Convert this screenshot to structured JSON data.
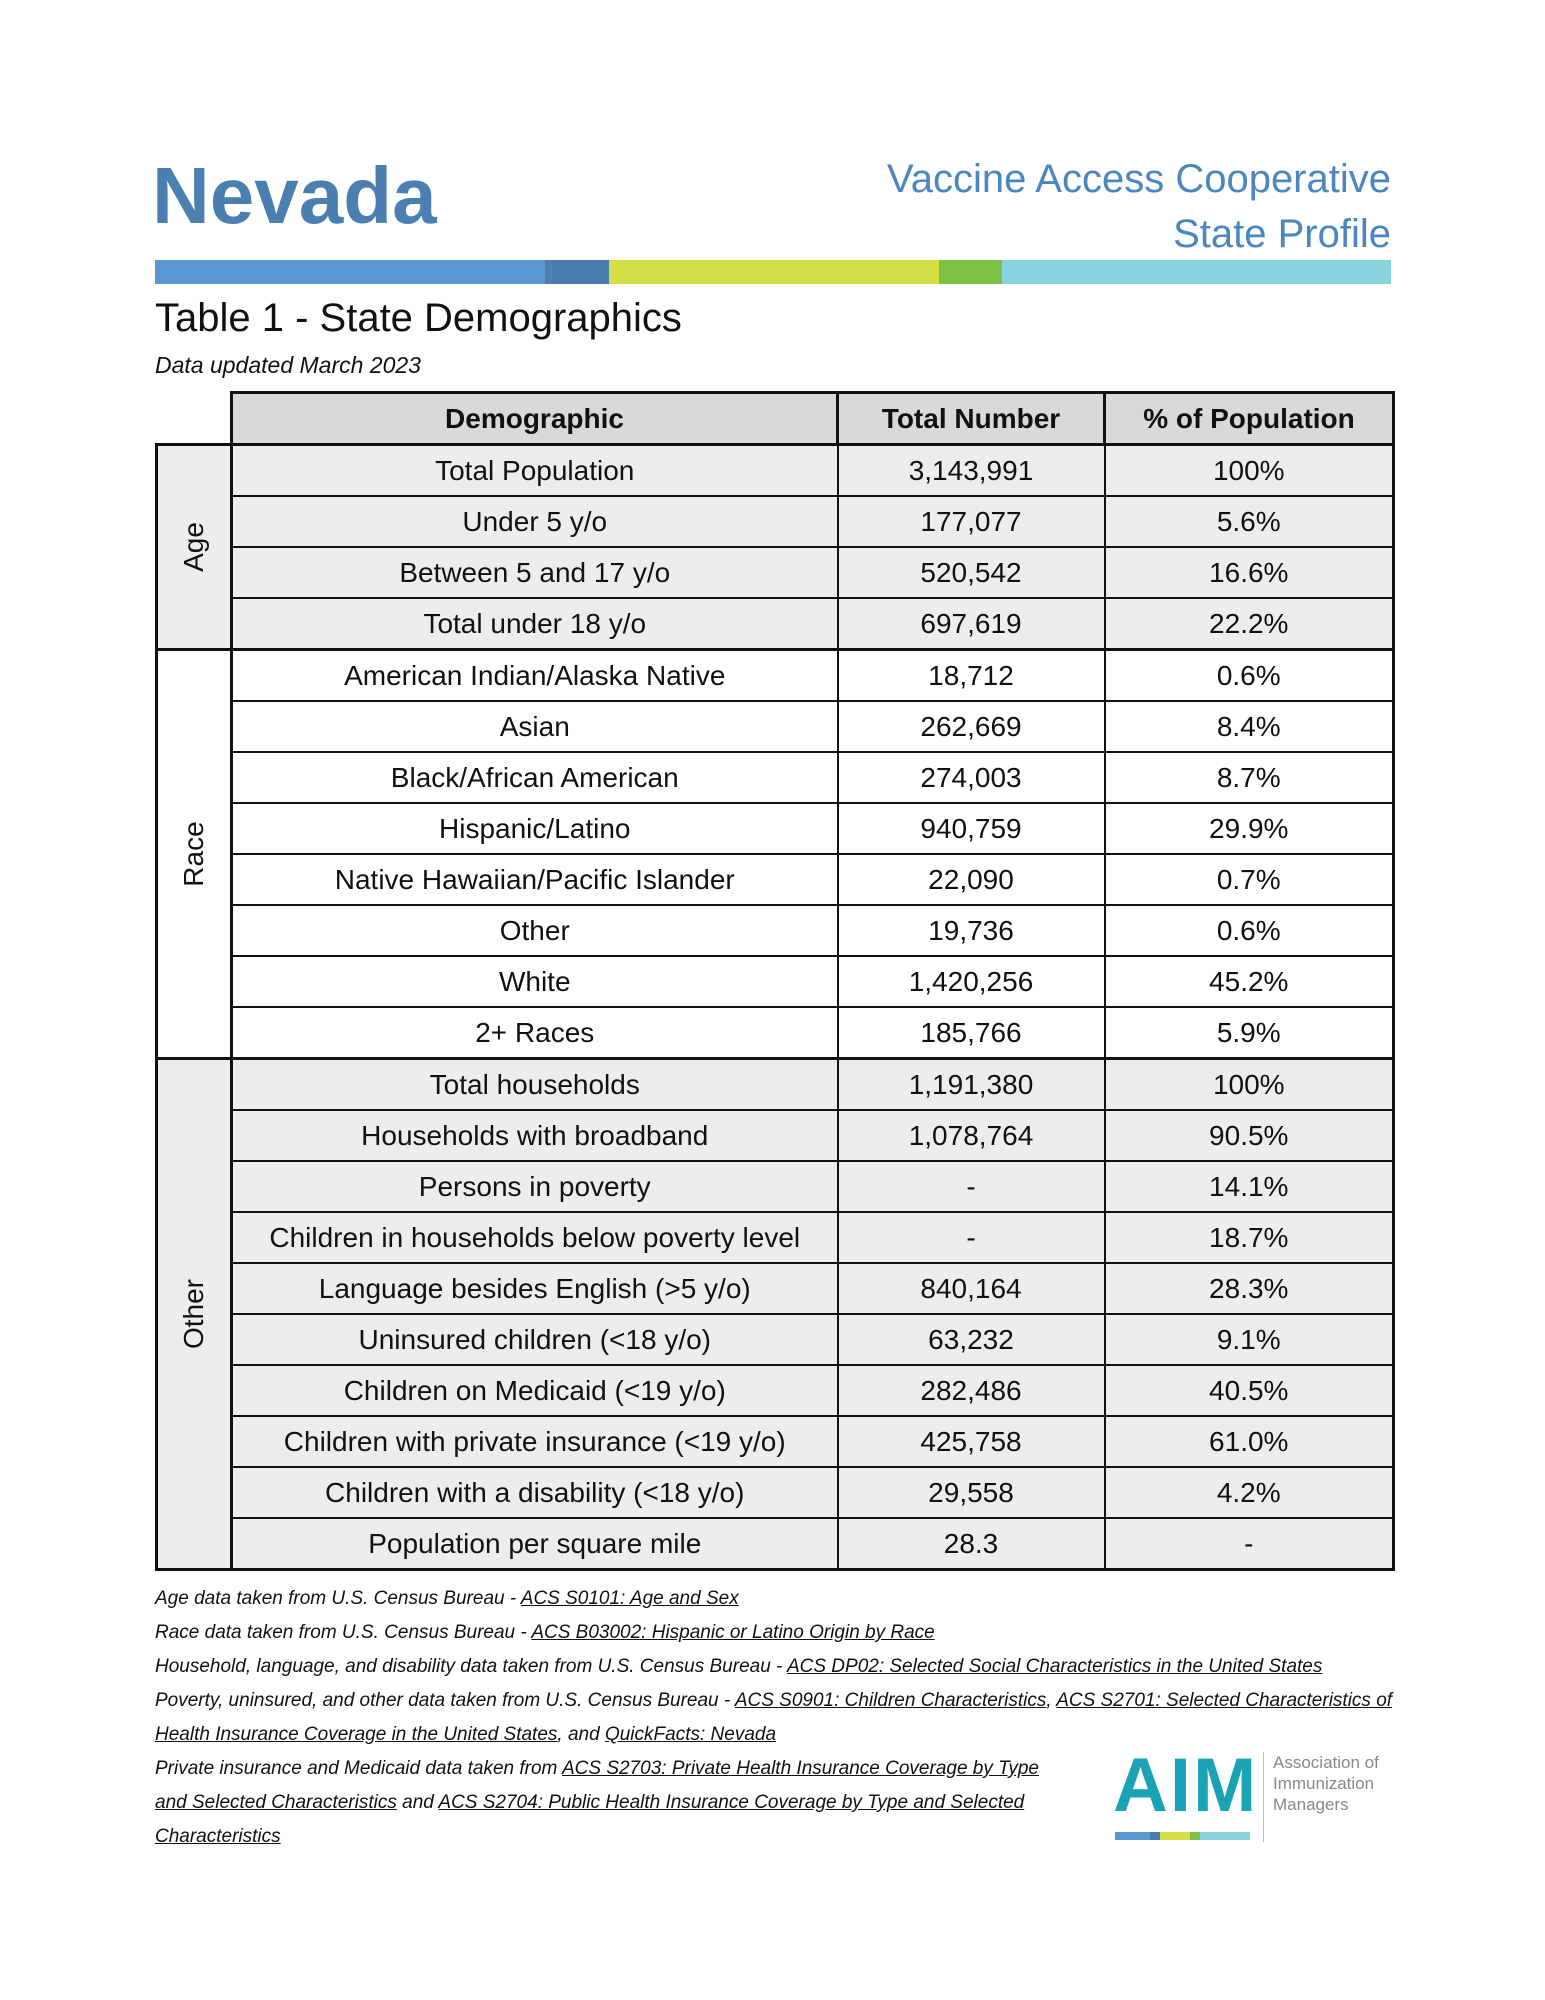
{
  "header": {
    "state": "Nevada",
    "subtitle_lines": [
      "Vaccine Access Cooperative",
      "State Profile"
    ]
  },
  "table": {
    "title": "Table 1 - State Demographics",
    "updated": "Data updated March 2023",
    "columns": [
      "Demographic",
      "Total Number",
      "% of Population"
    ],
    "groups": [
      {
        "label": "Age",
        "shaded": true,
        "rows": [
          [
            "Total Population",
            "3,143,991",
            "100%"
          ],
          [
            "Under 5 y/o",
            "177,077",
            "5.6%"
          ],
          [
            "Between 5 and 17 y/o",
            "520,542",
            "16.6%"
          ],
          [
            "Total under 18 y/o",
            "697,619",
            "22.2%"
          ]
        ]
      },
      {
        "label": "Race",
        "shaded": false,
        "rows": [
          [
            "American Indian/Alaska Native",
            "18,712",
            "0.6%"
          ],
          [
            "Asian",
            "262,669",
            "8.4%"
          ],
          [
            "Black/African American",
            "274,003",
            "8.7%"
          ],
          [
            "Hispanic/Latino",
            "940,759",
            "29.9%"
          ],
          [
            "Native Hawaiian/Pacific Islander",
            "22,090",
            "0.7%"
          ],
          [
            "Other",
            "19,736",
            "0.6%"
          ],
          [
            "White",
            "1,420,256",
            "45.2%"
          ],
          [
            "2+ Races",
            "185,766",
            "5.9%"
          ]
        ]
      },
      {
        "label": "Other",
        "shaded": true,
        "rows": [
          [
            "Total households",
            "1,191,380",
            "100%"
          ],
          [
            "Households with broadband",
            "1,078,764",
            "90.5%"
          ],
          [
            "Persons in poverty",
            "-",
            "14.1%"
          ],
          [
            "Children in households below poverty level",
            "-",
            "18.7%"
          ],
          [
            "Language besides English (>5 y/o)",
            "840,164",
            "28.3%"
          ],
          [
            "Uninsured children (<18 y/o)",
            "63,232",
            "9.1%"
          ],
          [
            "Children on Medicaid (<19 y/o)",
            "282,486",
            "40.5%"
          ],
          [
            "Children with private insurance (<19 y/o)",
            "425,758",
            "61.0%"
          ],
          [
            "Children with a disability (<18 y/o)",
            "29,558",
            "4.2%"
          ],
          [
            "Population per square mile",
            "28.3",
            "-"
          ]
        ]
      }
    ]
  },
  "footnotes": [
    [
      {
        "text": "Age data taken from U.S. Census Bureau - "
      },
      {
        "text": "ACS S0101: Age and Sex",
        "link": true
      }
    ],
    [
      {
        "text": "Race data taken from U.S. Census Bureau - "
      },
      {
        "text": "ACS B03002: Hispanic or Latino Origin by Race",
        "link": true
      }
    ],
    [
      {
        "text": "Household, language, and disability data taken from U.S. Census Bureau - "
      },
      {
        "text": "ACS DP02: Selected Social Characteristics in the United States",
        "link": true
      }
    ],
    [
      {
        "text": "Poverty, uninsured, and other data taken from U.S. Census Bureau - "
      },
      {
        "text": "ACS S0901: Children Characteristics",
        "link": true
      },
      {
        "text": ", "
      },
      {
        "text": "ACS S2701: Selected Characteristics of Health Insurance Coverage in the United States",
        "link": true
      },
      {
        "text": ", and "
      },
      {
        "text": "QuickFacts: Nevada",
        "link": true
      }
    ],
    [
      {
        "text": "Private insurance and Medicaid data taken from "
      },
      {
        "text": "ACS S2703: Private Health Insurance Coverage by Type and Selected Characteristics",
        "link": true
      },
      {
        "text": " and "
      },
      {
        "text": "ACS S2704: Public Health Insurance Coverage by Type and Selected Characteristics",
        "link": true
      }
    ]
  ],
  "logo": {
    "abbr": "AIM",
    "name_lines": [
      "Association of",
      "Immunization",
      "Managers"
    ]
  }
}
